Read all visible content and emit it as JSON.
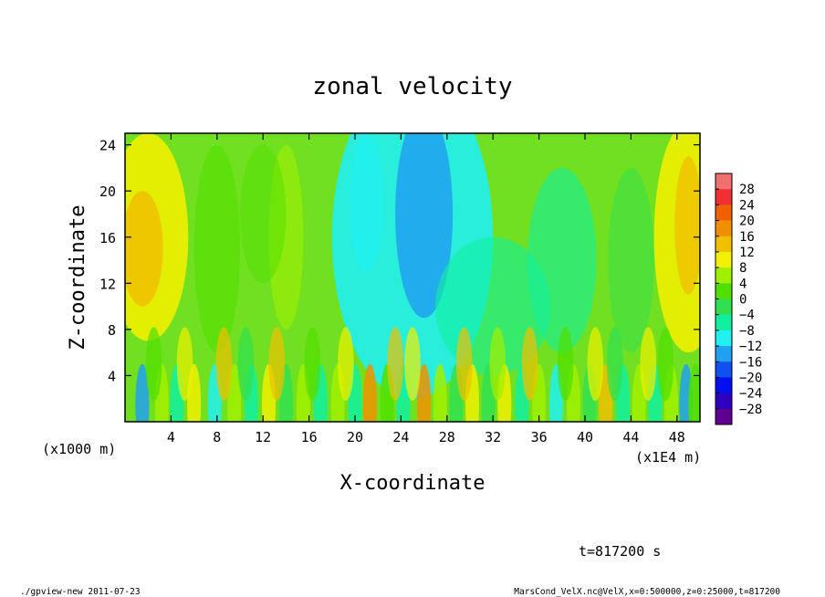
{
  "chart_data": {
    "type": "heatmap",
    "title": "zonal velocity",
    "xlabel": "X-coordinate",
    "ylabel": "Z-coordinate",
    "x_unit_note": "(x1E4 m)",
    "y_unit_note": "(x1000 m)",
    "xlim": [
      0,
      50
    ],
    "ylim": [
      0,
      25
    ],
    "x_ticks": [
      4,
      8,
      12,
      16,
      20,
      24,
      28,
      32,
      36,
      40,
      44,
      48
    ],
    "x_tick_labels": [
      "4",
      "8",
      "12",
      "16",
      "20",
      "24",
      "28",
      "32",
      "36",
      "40",
      "44",
      "48"
    ],
    "y_ticks": [
      4,
      8,
      12,
      16,
      20,
      24
    ],
    "y_tick_labels": [
      "4",
      "8",
      "12",
      "16",
      "20",
      "24"
    ],
    "colorbar": {
      "levels": [
        28,
        24,
        20,
        16,
        12,
        8,
        4,
        0,
        -4,
        -8,
        -12,
        -16,
        -20,
        -24,
        -28
      ],
      "labels": [
        "28",
        "24",
        "20",
        "16",
        "12",
        "8",
        "4",
        "0",
        "−4",
        "−8",
        "−12",
        "−16",
        "−20",
        "−24",
        "−28"
      ],
      "colors": [
        "#f07070",
        "#f03030",
        "#f06000",
        "#f09000",
        "#f0c000",
        "#f0f000",
        "#a0f000",
        "#50e000",
        "#30e050",
        "#10f0a0",
        "#20f0f0",
        "#20a0f0",
        "#1050f0",
        "#0010f0",
        "#3000c0",
        "#600090"
      ]
    },
    "time_label": "t=817200 s"
  },
  "footer": {
    "left": "./gpview-new   2011-07-23",
    "right": "MarsCond_VelX.nc@VelX,x=0:500000,z=0:25000,t=817200"
  }
}
